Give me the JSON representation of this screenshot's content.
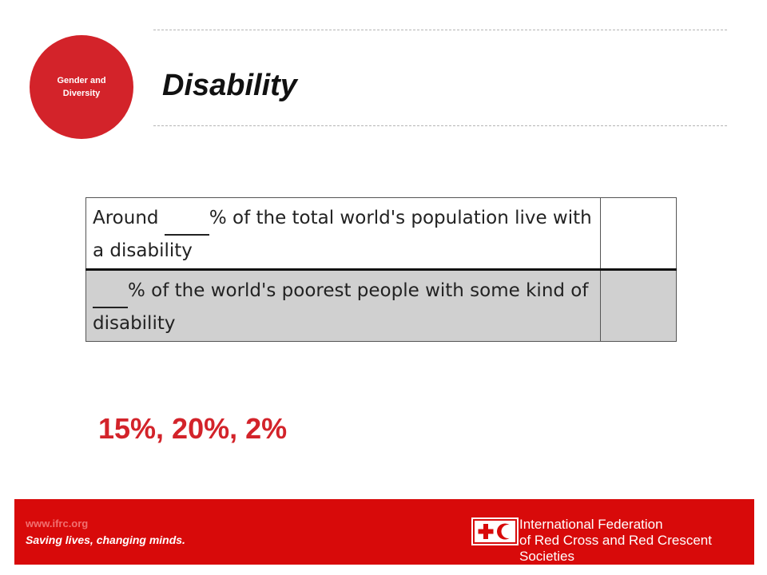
{
  "badge": {
    "text": "Gender and\nDiversity"
  },
  "slide": {
    "title": "Disability"
  },
  "table": {
    "rows": [
      {
        "prefix": "Around ",
        "suffix": "% of the total world's population live with a disability"
      },
      {
        "prefix": " ",
        "suffix": "% of the world's poorest people with some kind of disability"
      }
    ]
  },
  "answers": "15%, 20%, 2%",
  "footer": {
    "url": "www.ifrc.org",
    "tagline": "Saving lives, changing minds.",
    "org_name": "International Federation\nof Red Cross and Red Crescent Societies",
    "emblem_icon": "red-cross-red-crescent-emblem",
    "colors": {
      "bar": "#d80a0a",
      "accent": "#d3232a"
    }
  }
}
